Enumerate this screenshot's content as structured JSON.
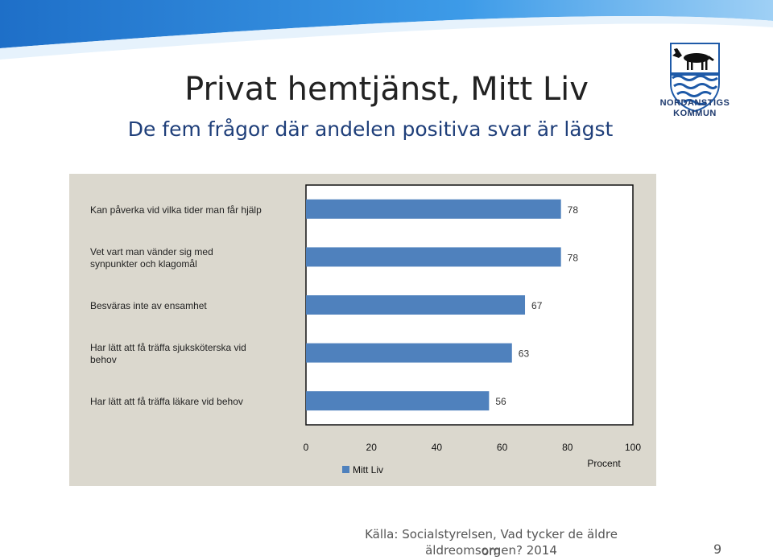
{
  "slide": {
    "title": "Privat hemtjänst, Mitt Liv",
    "subtitle": "De fem frågor där andelen positiva svar är lägst",
    "logo_text_line1": "NORDANSTIGS",
    "logo_text_line2": "KOMMUN",
    "source_line1": "Källa: Socialstyrelsen, Vad tycker de äldre om",
    "source_line2": "äldreomsorgen? 2014",
    "page_number": "9"
  },
  "colors": {
    "bar": "#4f81bd",
    "panel": "#dbd8ce",
    "accent_blue": "#2a86d8",
    "logo_blue": "#1e5aa8"
  },
  "chart_data": {
    "type": "bar",
    "orientation": "horizontal",
    "categories": [
      [
        "Kan påverka vid vilka tider man får hjälp"
      ],
      [
        "Vet vart man vänder sig med",
        "synpunkter och klagomål"
      ],
      [
        "Besväras inte av ensamhet"
      ],
      [
        "Har lätt att få träffa sjuksköterska vid",
        "behov"
      ],
      [
        "Har lätt att få träffa läkare vid behov"
      ]
    ],
    "series": [
      {
        "name": "Mitt Liv",
        "values": [
          78,
          78,
          67,
          63,
          56
        ]
      }
    ],
    "xlim": [
      0,
      100
    ],
    "xticks": [
      "0",
      "20",
      "40",
      "60",
      "80",
      "100"
    ],
    "xlabel": "Procent",
    "legend_position": "bottom-left",
    "grid": false
  }
}
